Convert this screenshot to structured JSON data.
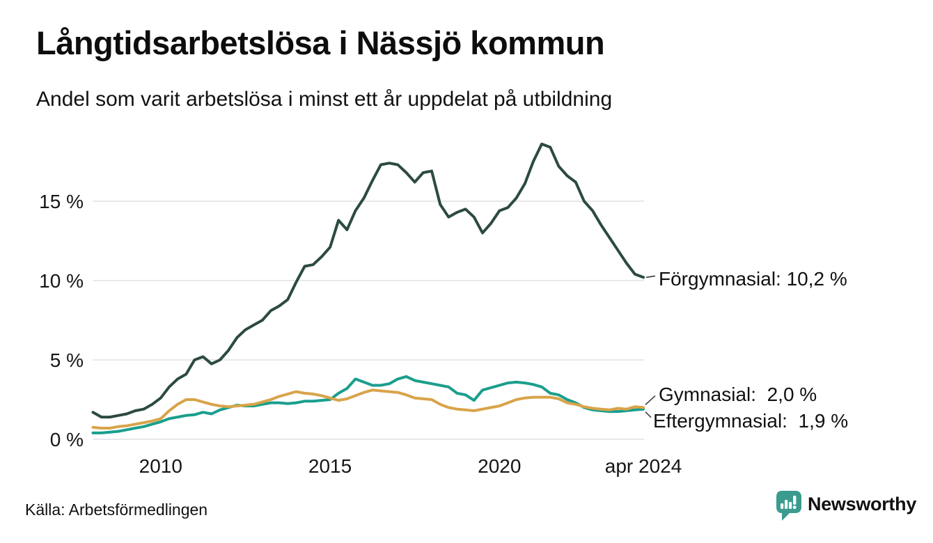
{
  "header": {
    "title": "Långtidsarbetslösa i Nässjö kommun",
    "subtitle": "Andel som varit arbetslösa i minst ett år uppdelat på utbildning"
  },
  "chart_data": {
    "type": "line",
    "title": "Långtidsarbetslösa i Nässjö kommun",
    "subtitle": "Andel som varit arbetslösa i minst ett år uppdelat på utbildning",
    "unit": "%",
    "grid": "horizontal",
    "legend_position": "end-of-line-labels",
    "xlim": [
      2008,
      2024.25
    ],
    "ylim": [
      0,
      19.3
    ],
    "x": [
      2008.0,
      2008.25,
      2008.5,
      2008.75,
      2009.0,
      2009.25,
      2009.5,
      2009.75,
      2010.0,
      2010.25,
      2010.5,
      2010.75,
      2011.0,
      2011.25,
      2011.5,
      2011.75,
      2012.0,
      2012.25,
      2012.5,
      2012.75,
      2013.0,
      2013.25,
      2013.5,
      2013.75,
      2014.0,
      2014.25,
      2014.5,
      2014.75,
      2015.0,
      2015.25,
      2015.5,
      2015.75,
      2016.0,
      2016.25,
      2016.5,
      2016.75,
      2017.0,
      2017.25,
      2017.5,
      2017.75,
      2018.0,
      2018.25,
      2018.5,
      2018.75,
      2019.0,
      2019.25,
      2019.5,
      2019.75,
      2020.0,
      2020.25,
      2020.5,
      2020.75,
      2021.0,
      2021.25,
      2021.5,
      2021.75,
      2022.0,
      2022.25,
      2022.5,
      2022.75,
      2023.0,
      2023.25,
      2023.5,
      2023.75,
      2024.0,
      2024.25
    ],
    "series": [
      {
        "name": "Förgymnasial",
        "color": "#2c4a42",
        "end_label": "Förgymnasial: 10,2 %",
        "end_value": "10,2 %",
        "values": [
          1.7,
          1.4,
          1.4,
          1.5,
          1.6,
          1.8,
          1.9,
          2.2,
          2.6,
          3.3,
          3.8,
          4.1,
          5.0,
          5.2,
          4.75,
          5.0,
          5.6,
          6.4,
          6.9,
          7.2,
          7.5,
          8.1,
          8.4,
          8.8,
          9.9,
          10.9,
          11.0,
          11.5,
          12.1,
          13.8,
          13.2,
          14.4,
          15.2,
          16.3,
          17.3,
          17.4,
          17.3,
          16.8,
          16.2,
          16.8,
          16.9,
          14.8,
          14.0,
          14.3,
          14.5,
          14.0,
          13.0,
          13.6,
          14.4,
          14.6,
          15.2,
          16.1,
          17.5,
          18.6,
          18.4,
          17.2,
          16.6,
          16.2,
          15.0,
          14.4,
          13.5,
          12.7,
          11.9,
          11.1,
          10.4,
          10.2
        ]
      },
      {
        "name": "Gymnasial",
        "color": "#d8a44a",
        "end_label": "Gymnasial:  2,0 %",
        "end_value": "2,0 %",
        "values": [
          0.75,
          0.7,
          0.7,
          0.8,
          0.85,
          0.95,
          1.05,
          1.15,
          1.3,
          1.8,
          2.2,
          2.5,
          2.5,
          2.35,
          2.2,
          2.1,
          2.05,
          2.1,
          2.15,
          2.2,
          2.35,
          2.5,
          2.7,
          2.85,
          3.0,
          2.9,
          2.85,
          2.75,
          2.6,
          2.45,
          2.55,
          2.75,
          2.95,
          3.1,
          3.05,
          3.0,
          2.95,
          2.8,
          2.6,
          2.55,
          2.5,
          2.2,
          2.0,
          1.9,
          1.85,
          1.8,
          1.9,
          2.0,
          2.1,
          2.3,
          2.5,
          2.6,
          2.65,
          2.65,
          2.65,
          2.55,
          2.3,
          2.2,
          2.05,
          1.95,
          1.9,
          1.85,
          1.95,
          1.9,
          2.05,
          2.0
        ]
      },
      {
        "name": "Eftergymnasial",
        "color": "#1a9e8d",
        "end_label": "Eftergymnasial:  1,9 %",
        "end_value": "1,9 %",
        "values": [
          0.4,
          0.4,
          0.45,
          0.5,
          0.6,
          0.7,
          0.8,
          0.95,
          1.1,
          1.3,
          1.4,
          1.5,
          1.55,
          1.7,
          1.6,
          1.85,
          2.0,
          2.15,
          2.1,
          2.1,
          2.2,
          2.3,
          2.3,
          2.25,
          2.3,
          2.4,
          2.4,
          2.45,
          2.5,
          2.9,
          3.2,
          3.8,
          3.6,
          3.4,
          3.4,
          3.5,
          3.8,
          3.95,
          3.7,
          3.6,
          3.5,
          3.4,
          3.3,
          2.9,
          2.8,
          2.45,
          3.1,
          3.25,
          3.4,
          3.55,
          3.6,
          3.55,
          3.45,
          3.3,
          2.9,
          2.8,
          2.5,
          2.3,
          2.0,
          1.85,
          1.8,
          1.75,
          1.75,
          1.8,
          1.85,
          1.9
        ]
      }
    ],
    "yticks": [
      {
        "value": 0,
        "label": "0 %"
      },
      {
        "value": 5,
        "label": "5 %"
      },
      {
        "value": 10,
        "label": "10 %"
      },
      {
        "value": 15,
        "label": "15 %"
      }
    ],
    "xticks": [
      {
        "value": 2010,
        "label": "2010"
      },
      {
        "value": 2015,
        "label": "2015"
      },
      {
        "value": 2020,
        "label": "2020"
      },
      {
        "value": 2024.25,
        "label": "apr 2024"
      }
    ]
  },
  "footer": {
    "source": "Källa: Arbetsförmedlingen",
    "logo_text": "Newsworthy",
    "logo_color": "#3a9b8e"
  }
}
